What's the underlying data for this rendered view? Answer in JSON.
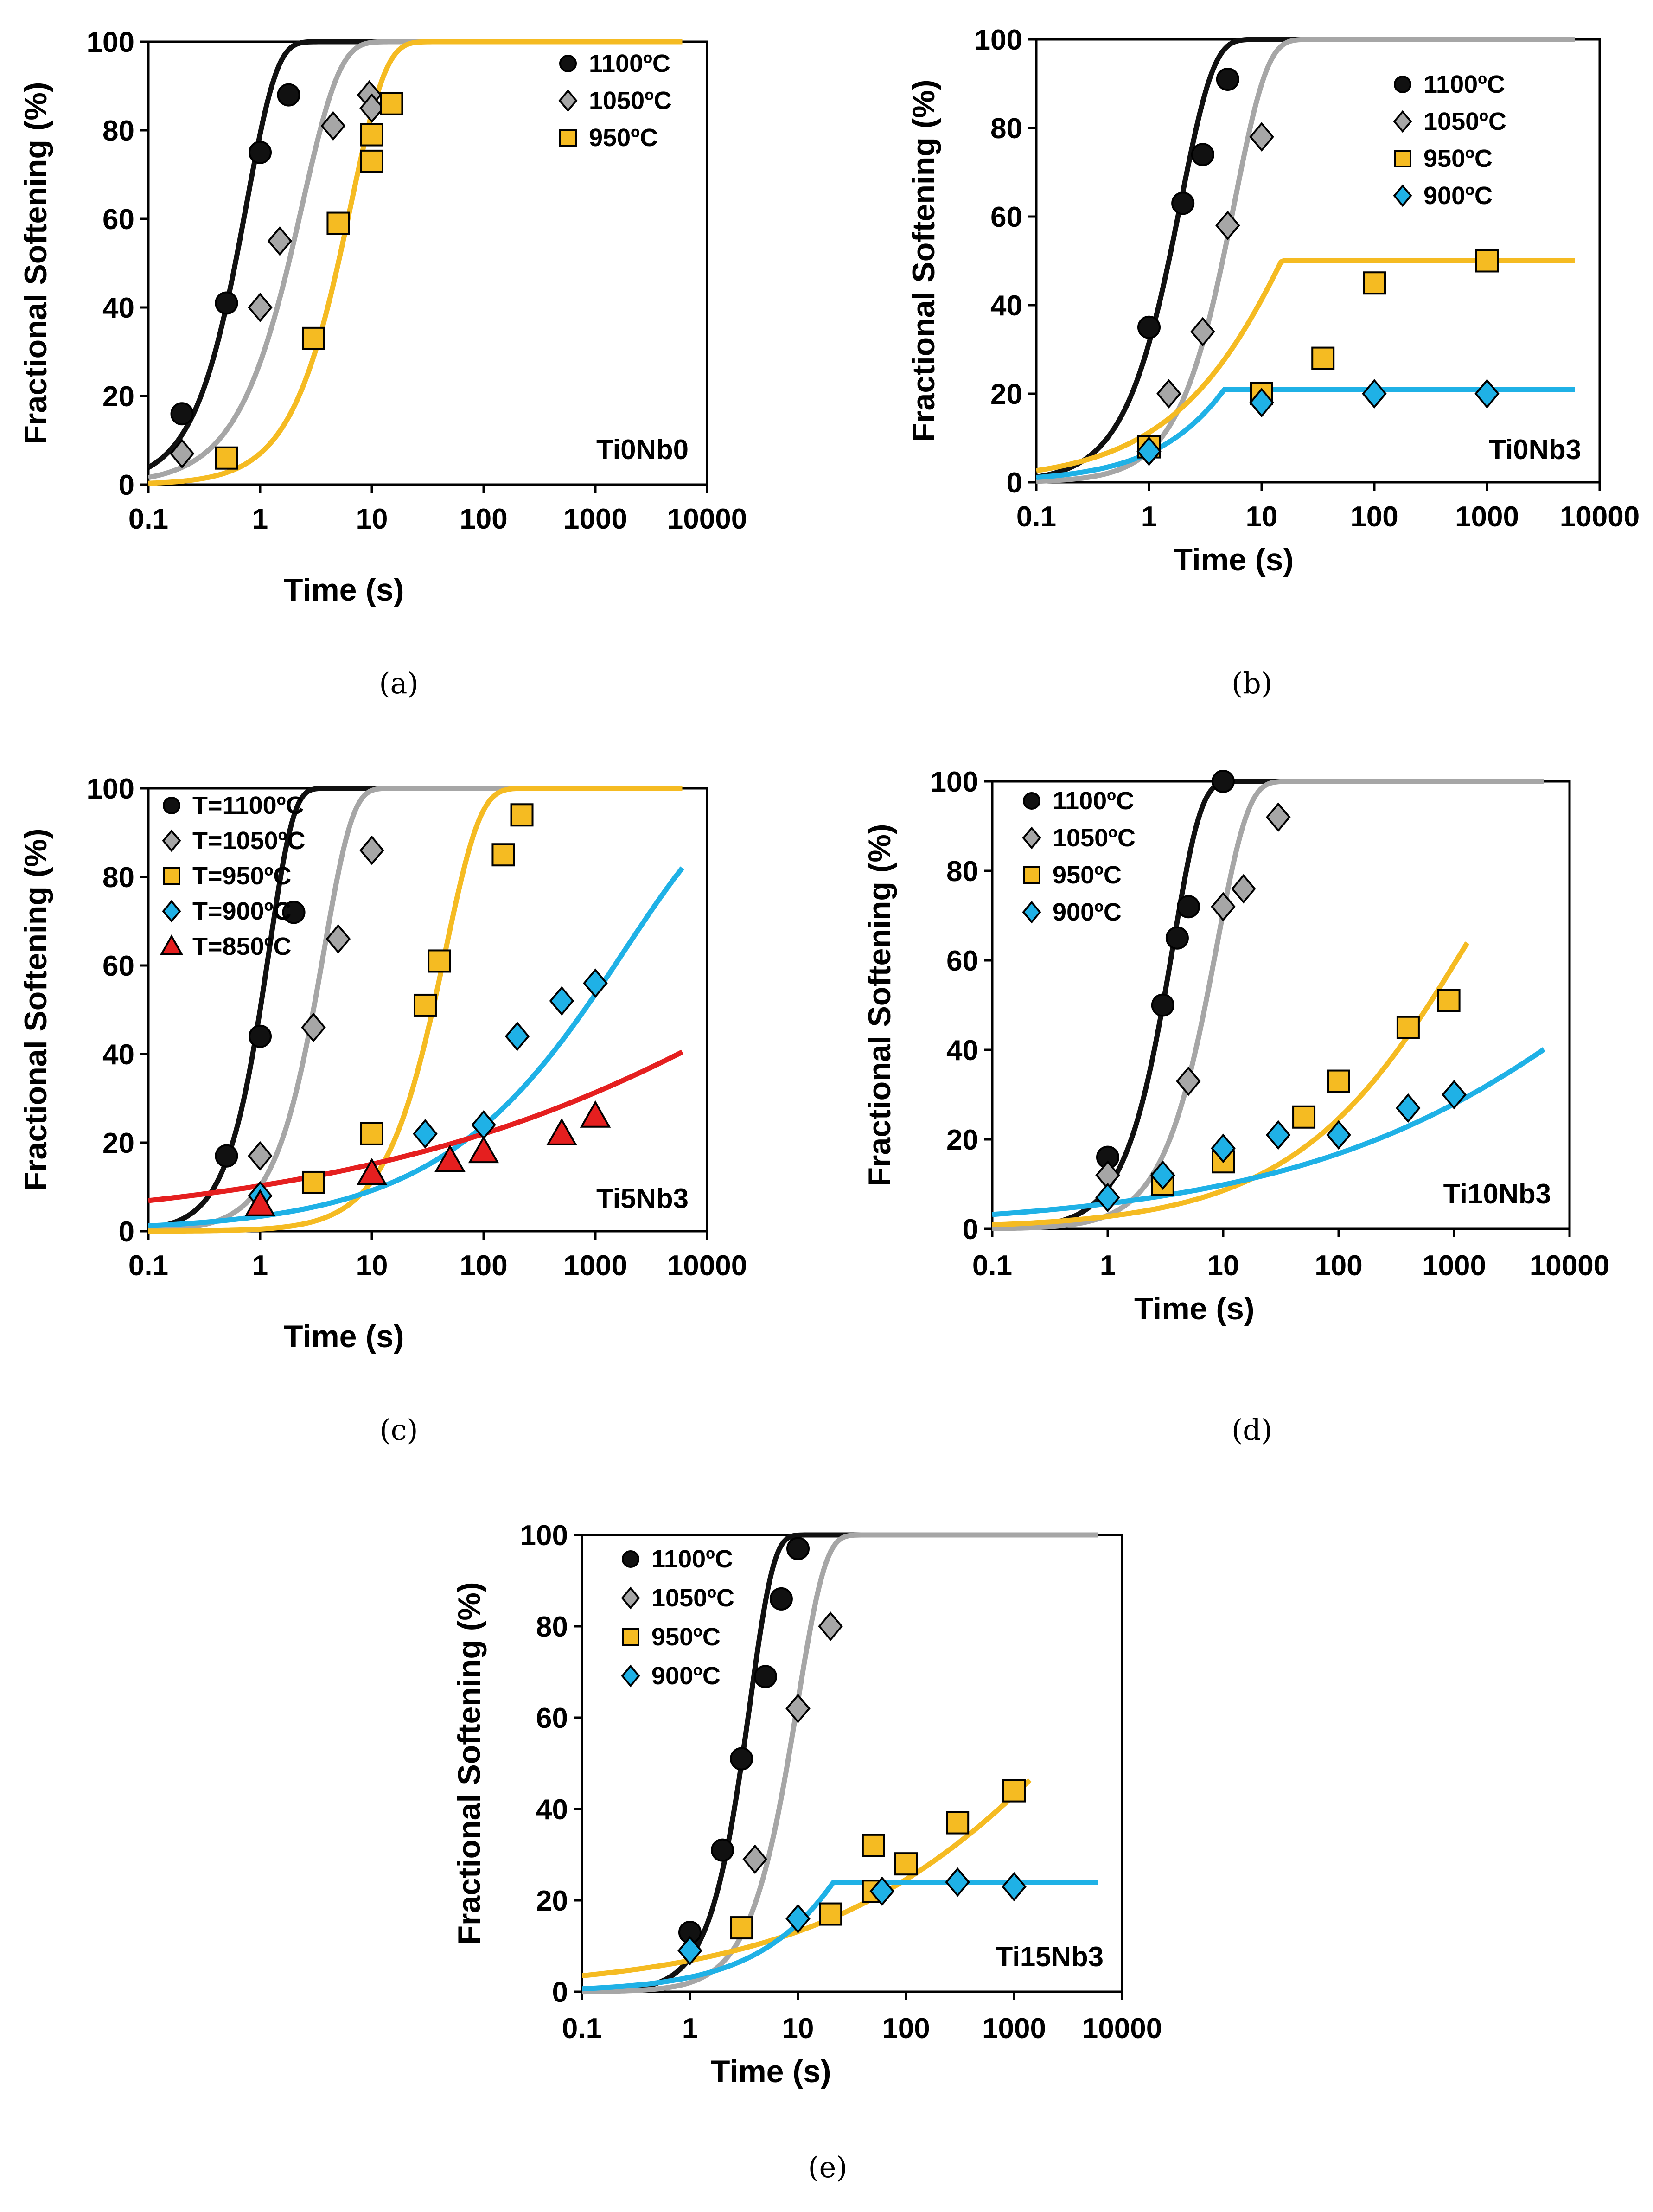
{
  "figure": {
    "colors": {
      "t1100": "#111111",
      "t1050": "#a6a6a6",
      "t950": "#f5bb22",
      "t900": "#1fb1e6",
      "t850": "#e51f1f"
    }
  },
  "chart_data": [
    {
      "id": "a",
      "caption": "(a)",
      "type": "scatter",
      "title": "",
      "sample_label": "Ti0Nb0",
      "xlabel": "Time (s)",
      "ylabel": "Fractional Softening (%)",
      "xscale": "log",
      "xlim": [
        0.1,
        10000
      ],
      "ylim": [
        0,
        100
      ],
      "x_ticks": [
        "0.1",
        "1",
        "10",
        "100",
        "1000",
        "10000"
      ],
      "y_ticks": [
        "0",
        "20",
        "40",
        "60",
        "80",
        "100"
      ],
      "series": [
        {
          "name": "1100ºC",
          "color": "#111111",
          "marker": "circle",
          "points": [
            [
              0.2,
              16
            ],
            [
              0.5,
              41
            ],
            [
              1,
              75
            ],
            [
              1.8,
              88
            ]
          ],
          "curve": {
            "t50": 0.6,
            "n": 1.6
          }
        },
        {
          "name": "1050ºC",
          "color": "#a6a6a6",
          "marker": "diamond",
          "points": [
            [
              0.2,
              7
            ],
            [
              1,
              40
            ],
            [
              1.5,
              55
            ],
            [
              4.5,
              81
            ],
            [
              9.5,
              88
            ],
            [
              10,
              85
            ]
          ],
          "curve": {
            "t50": 1.8,
            "n": 1.3
          }
        },
        {
          "name": "950ºC",
          "color": "#f5bb22",
          "marker": "square",
          "points": [
            [
              0.5,
              6
            ],
            [
              3,
              33
            ],
            [
              5,
              59
            ],
            [
              10,
              79
            ],
            [
              10,
              73
            ],
            [
              15,
              86
            ]
          ],
          "curve": {
            "t50": 5.0,
            "n": 1.4
          }
        }
      ]
    },
    {
      "id": "b",
      "caption": "(b)",
      "type": "scatter",
      "title": "",
      "sample_label": "Ti0Nb3",
      "xlabel": "Time (s)",
      "ylabel": "Fractional Softening (%)",
      "xscale": "log",
      "xlim": [
        0.1,
        10000
      ],
      "ylim": [
        0,
        100
      ],
      "x_ticks": [
        "0.1",
        "1",
        "10",
        "100",
        "1000",
        "10000"
      ],
      "y_ticks": [
        "0",
        "20",
        "40",
        "60",
        "80",
        "100"
      ],
      "series": [
        {
          "name": "1100ºC",
          "color": "#111111",
          "marker": "circle",
          "points": [
            [
              1,
              35
            ],
            [
              2,
              63
            ],
            [
              3,
              74
            ],
            [
              5,
              91
            ]
          ],
          "curve": {
            "t50": 1.5,
            "n": 1.5
          }
        },
        {
          "name": "1050ºC",
          "color": "#a6a6a6",
          "marker": "diamond",
          "points": [
            [
              1.5,
              20
            ],
            [
              3,
              34
            ],
            [
              5,
              58
            ],
            [
              10,
              78
            ]
          ],
          "curve": {
            "t50": 4.5,
            "n": 1.5
          }
        },
        {
          "name": "950ºC",
          "color": "#f5bb22",
          "marker": "square",
          "points": [
            [
              1,
              8
            ],
            [
              10,
              20
            ],
            [
              35,
              28
            ],
            [
              100,
              45
            ],
            [
              1000,
              50
            ]
          ],
          "curve": {
            "t50": 15,
            "n": 0.65,
            "cap": 50
          }
        },
        {
          "name": "900ºC",
          "color": "#1fb1e6",
          "marker": "diamond",
          "points": [
            [
              1,
              7
            ],
            [
              10,
              18
            ],
            [
              100,
              20
            ],
            [
              1000,
              20
            ]
          ],
          "curve": {
            "t50": 18,
            "n": 0.8,
            "cap": 21
          }
        }
      ]
    },
    {
      "id": "c",
      "caption": "(c)",
      "type": "scatter",
      "title": "",
      "sample_label": "Ti5Nb3",
      "xlabel": "Time (s)",
      "ylabel": "Fractional Softening (%)",
      "xscale": "log",
      "xlim": [
        0.1,
        10000
      ],
      "ylim": [
        0,
        100
      ],
      "x_ticks": [
        "0.1",
        "1",
        "10",
        "100",
        "1000",
        "10000"
      ],
      "y_ticks": [
        "0",
        "20",
        "40",
        "60",
        "80",
        "100"
      ],
      "series": [
        {
          "name": "T=1100ºC",
          "color": "#111111",
          "marker": "circle",
          "points": [
            [
              0.5,
              17
            ],
            [
              1,
              44
            ],
            [
              2,
              72
            ]
          ],
          "curve": {
            "t50": 1.0,
            "n": 2.0
          }
        },
        {
          "name": "T=1050ºC",
          "color": "#a6a6a6",
          "marker": "diamond",
          "points": [
            [
              1,
              17
            ],
            [
              3,
              46
            ],
            [
              5,
              66
            ],
            [
              10,
              86
            ]
          ],
          "curve": {
            "t50": 3.0,
            "n": 1.7
          }
        },
        {
          "name": "T=950ºC",
          "color": "#f5bb22",
          "marker": "square",
          "points": [
            [
              3,
              11
            ],
            [
              10,
              22
            ],
            [
              30,
              51
            ],
            [
              40,
              61
            ],
            [
              150,
              85
            ],
            [
              220,
              94
            ]
          ],
          "curve": {
            "t50": 35,
            "n": 1.4
          }
        },
        {
          "name": "T=900ºC",
          "color": "#1fb1e6",
          "marker": "diamond",
          "points": [
            [
              1,
              8
            ],
            [
              30,
              22
            ],
            [
              100,
              24
            ],
            [
              200,
              44
            ],
            [
              500,
              52
            ],
            [
              1000,
              56
            ]
          ],
          "curve": {
            "t50": 800,
            "n": 0.45
          }
        },
        {
          "name": "T=850ºC",
          "color": "#e51f1f",
          "marker": "triangle",
          "points": [
            [
              1,
              6
            ],
            [
              10,
              13
            ],
            [
              50,
              16
            ],
            [
              100,
              18
            ],
            [
              500,
              22
            ],
            [
              1000,
              26
            ]
          ],
          "curve": {
            "t50": 30000,
            "n": 0.18
          }
        }
      ]
    },
    {
      "id": "d",
      "caption": "(d)",
      "type": "scatter",
      "title": "",
      "sample_label": "Ti10Nb3",
      "xlabel": "Time (s)",
      "ylabel": "Fractional Softening (%)",
      "xscale": "log",
      "xlim": [
        0.1,
        10000
      ],
      "ylim": [
        0,
        100
      ],
      "x_ticks": [
        "0.1",
        "1",
        "10",
        "100",
        "1000",
        "10000"
      ],
      "y_ticks": [
        "0",
        "20",
        "40",
        "60",
        "80",
        "100"
      ],
      "series": [
        {
          "name": "1100ºC",
          "color": "#111111",
          "marker": "circle",
          "points": [
            [
              1,
              16
            ],
            [
              3,
              50
            ],
            [
              4,
              65
            ],
            [
              5,
              72
            ],
            [
              10,
              100
            ]
          ],
          "curve": {
            "t50": 3.0,
            "n": 1.8
          }
        },
        {
          "name": "1050ºC",
          "color": "#a6a6a6",
          "marker": "diamond",
          "points": [
            [
              1,
              12
            ],
            [
              5,
              33
            ],
            [
              10,
              72
            ],
            [
              15,
              76
            ],
            [
              30,
              92
            ]
          ],
          "curve": {
            "t50": 7.0,
            "n": 1.6
          }
        },
        {
          "name": "950ºC",
          "color": "#f5bb22",
          "marker": "square",
          "points": [
            [
              3,
              10
            ],
            [
              10,
              15
            ],
            [
              50,
              25
            ],
            [
              100,
              33
            ],
            [
              400,
              45
            ],
            [
              900,
              51
            ]
          ],
          "curve": {
            "t50": 600,
            "n": 0.5,
            "xmax": 1300
          }
        },
        {
          "name": "900ºC",
          "color": "#1fb1e6",
          "marker": "diamond",
          "points": [
            [
              1,
              7
            ],
            [
              3,
              12
            ],
            [
              10,
              18
            ],
            [
              30,
              21
            ],
            [
              100,
              21
            ],
            [
              400,
              27
            ],
            [
              1000,
              30
            ]
          ],
          "curve": {
            "t50": 20000,
            "n": 0.25
          }
        }
      ]
    },
    {
      "id": "e",
      "caption": "(e)",
      "type": "scatter",
      "title": "",
      "sample_label": "Ti15Nb3",
      "xlabel": "Time (s)",
      "ylabel": "Fractional Softening (%)",
      "xscale": "log",
      "xlim": [
        0.1,
        10000
      ],
      "ylim": [
        0,
        100
      ],
      "x_ticks": [
        "0.1",
        "1",
        "10",
        "100",
        "1000",
        "10000"
      ],
      "y_ticks": [
        "0",
        "20",
        "40",
        "60",
        "80",
        "100"
      ],
      "series": [
        {
          "name": "1100ºC",
          "color": "#111111",
          "marker": "circle",
          "points": [
            [
              1,
              13
            ],
            [
              2,
              31
            ],
            [
              3,
              51
            ],
            [
              5,
              69
            ],
            [
              7,
              86
            ],
            [
              10,
              97
            ]
          ],
          "curve": {
            "t50": 3.0,
            "n": 2.0
          }
        },
        {
          "name": "1050ºC",
          "color": "#a6a6a6",
          "marker": "diamond",
          "points": [
            [
              4,
              29
            ],
            [
              10,
              62
            ],
            [
              20,
              80
            ]
          ],
          "curve": {
            "t50": 8.0,
            "n": 1.7
          }
        },
        {
          "name": "950ºC",
          "color": "#f5bb22",
          "marker": "square",
          "points": [
            [
              3,
              14
            ],
            [
              20,
              17
            ],
            [
              50,
              32
            ],
            [
              50,
              22
            ],
            [
              100,
              28
            ],
            [
              300,
              37
            ],
            [
              1000,
              44
            ]
          ],
          "curve": {
            "t50": 2000,
            "n": 0.3,
            "xmax": 1400
          }
        },
        {
          "name": "900ºC",
          "color": "#1fb1e6",
          "marker": "diamond",
          "points": [
            [
              1,
              9
            ],
            [
              10,
              16
            ],
            [
              60,
              22
            ],
            [
              300,
              24
            ],
            [
              1000,
              23
            ]
          ],
          "curve": {
            "t50": 80,
            "n": 0.7,
            "cap": 24
          }
        }
      ]
    }
  ]
}
